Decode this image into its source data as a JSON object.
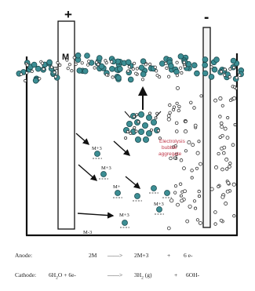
{
  "electrodes": {
    "anode_sign": "+",
    "cathode_sign": "-",
    "anode_label": "M"
  },
  "ions": {
    "ion_1": "M+3",
    "ion_2": "M+",
    "ion_3": "M+3",
    "ion_4": "M+3",
    "ion_5": "M+3",
    "ion_6": "M-3"
  },
  "aggregate_label_line1": "Electrolysis",
  "aggregate_label_line2": "bubble",
  "aggregate_label_line3": "aggregate",
  "colors": {
    "particle": "#3c8e94",
    "bubble": "#ffffff",
    "aggregate_label": "#c0394b",
    "outline": "#111111"
  },
  "equations": {
    "anode_label": "Anode:",
    "anode_reactant": "2M",
    "anode_arrow": "——>",
    "anode_product": "2M+3",
    "anode_plus": "+",
    "anode_electrons": "6 e-",
    "cathode_label": "Cathode:",
    "cathode_h2o": "6H",
    "cathode_h2o_sub": "2",
    "cathode_h2o_end": "O + 6e-",
    "cathode_arrow": "——>",
    "cathode_h2": "3H",
    "cathode_h2_sub": "2",
    "cathode_h2_state": " (g)",
    "cathode_plus": "+",
    "cathode_oh": "6OH-"
  }
}
